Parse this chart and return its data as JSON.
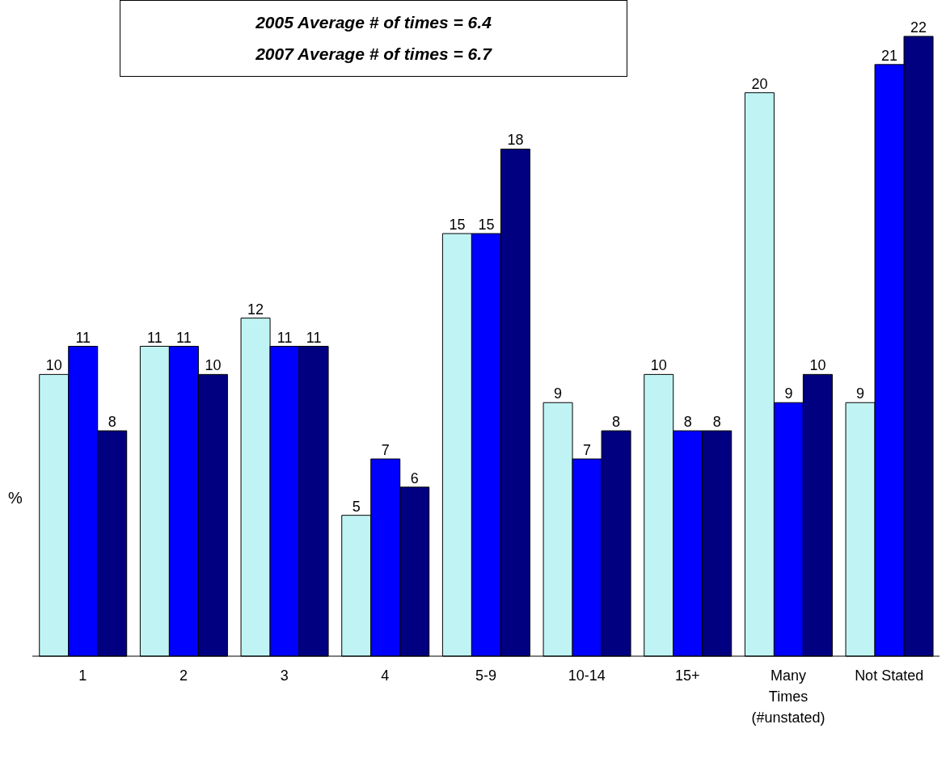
{
  "chart_data": {
    "type": "bar",
    "ylabel": "%",
    "annotations": [
      "2005 Average # of times = 6.4",
      "2007 Average # of times = 6.7"
    ],
    "categories": [
      "1",
      "2",
      "3",
      "4",
      "5-9",
      "10-14",
      "15+",
      "Many Times (#unstated)",
      "Not Stated"
    ],
    "series": [
      {
        "color": "#c0f4f4",
        "values": [
          10,
          11,
          12,
          5,
          15,
          9,
          10,
          20,
          9
        ]
      },
      {
        "color": "#0000ff",
        "values": [
          11,
          11,
          11,
          7,
          15,
          7,
          8,
          9,
          21
        ]
      },
      {
        "color": "#000080",
        "values": [
          8,
          10,
          11,
          6,
          18,
          8,
          8,
          10,
          22
        ]
      }
    ],
    "data_labels": true
  }
}
